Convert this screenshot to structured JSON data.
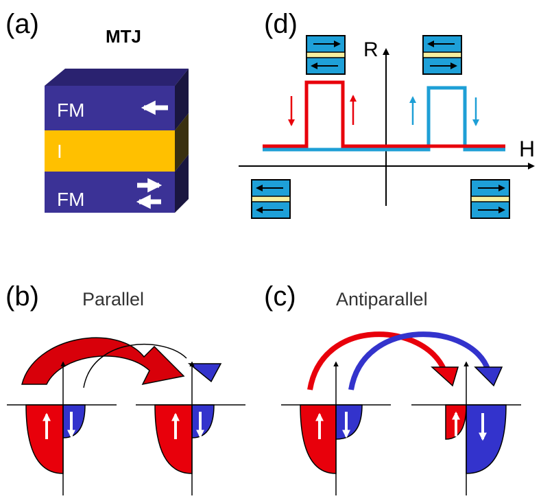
{
  "panels": [
    {
      "label": "(a)",
      "title": "MTJ",
      "layers": [
        "FM",
        "I",
        "FM"
      ]
    },
    {
      "label": "(d)",
      "axes": {
        "y": "R",
        "x": "H"
      }
    },
    {
      "label": "(b)",
      "title": "Parallel"
    },
    {
      "label": "(c)",
      "title": "Antiparallel"
    }
  ]
}
